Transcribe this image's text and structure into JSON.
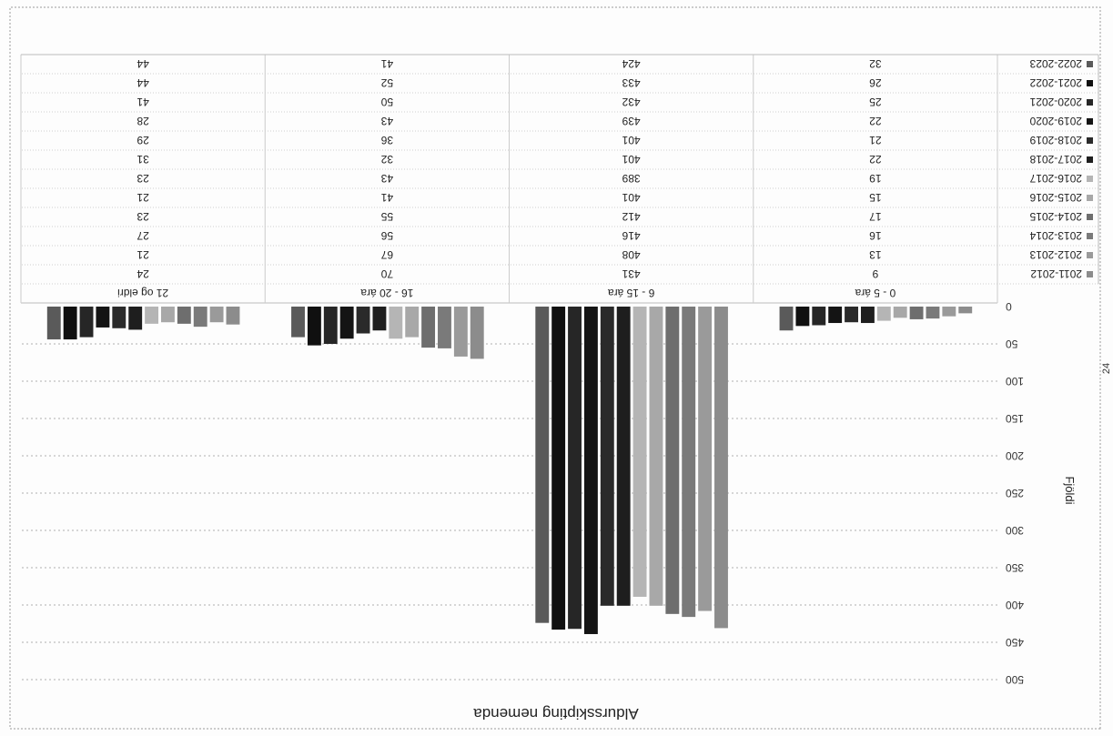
{
  "page_number": "24",
  "chart_data": {
    "type": "bar",
    "title": "Aldursskipting nemenda",
    "xlabel": "",
    "ylabel": "Fjöldi",
    "ylim": [
      0,
      500
    ],
    "yticks": [
      0,
      50,
      100,
      150,
      200,
      250,
      300,
      350,
      400,
      450,
      500
    ],
    "grid": true,
    "legend_placement": "left of data table",
    "orientation": "image rotated 180 degrees",
    "categories": [
      "0 - 5 ára",
      "6 - 15 ára",
      "16 - 20 ára",
      "21 og eldri"
    ],
    "series": [
      {
        "name": "2011-2012",
        "values": [
          9,
          431,
          70,
          24
        ],
        "color": "#8c8c8c"
      },
      {
        "name": "2012-2013",
        "values": [
          13,
          408,
          67,
          21
        ],
        "color": "#9a9a9a"
      },
      {
        "name": "2013-2014",
        "values": [
          16,
          416,
          56,
          27
        ],
        "color": "#7a7a7a"
      },
      {
        "name": "2014-2015",
        "values": [
          17,
          412,
          55,
          23
        ],
        "color": "#6e6e6e"
      },
      {
        "name": "2015-2016",
        "values": [
          15,
          401,
          41,
          21
        ],
        "color": "#a8a8a8"
      },
      {
        "name": "2016-2017",
        "values": [
          19,
          389,
          43,
          23
        ],
        "color": "#b5b5b5"
      },
      {
        "name": "2017-2018",
        "values": [
          22,
          401,
          32,
          31
        ],
        "color": "#1e1e1e"
      },
      {
        "name": "2018-2019",
        "values": [
          21,
          401,
          36,
          29
        ],
        "color": "#2a2a2a"
      },
      {
        "name": "2019-2020",
        "values": [
          22,
          439,
          43,
          28
        ],
        "color": "#141414"
      },
      {
        "name": "2020-2021",
        "values": [
          25,
          432,
          50,
          41
        ],
        "color": "#262626"
      },
      {
        "name": "2021-2022",
        "values": [
          26,
          433,
          52,
          44
        ],
        "color": "#101010"
      },
      {
        "name": "2022-2023",
        "values": [
          32,
          424,
          41,
          44
        ],
        "color": "#5a5a5a"
      }
    ]
  }
}
